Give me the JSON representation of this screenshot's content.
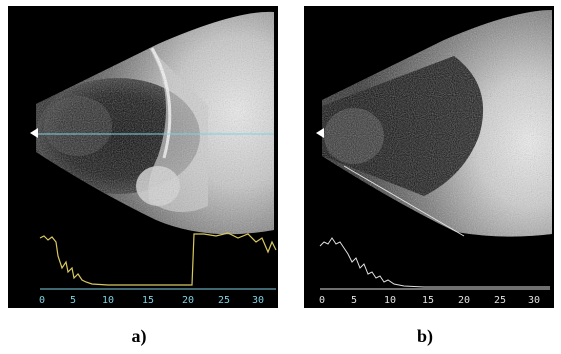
{
  "panels": [
    {
      "id": "a",
      "caption": "a)",
      "trace_color": "#d8c860",
      "axis_color": "#7fd0e0",
      "tick_labels": [
        "0",
        "5",
        "10",
        "15",
        "20",
        "25",
        "30"
      ]
    },
    {
      "id": "b",
      "caption": "b)",
      "trace_color": "#e0e0e0",
      "axis_color": "#e0e0e0",
      "tick_labels": [
        "0",
        "5",
        "10",
        "15",
        "20",
        "25",
        "30"
      ]
    }
  ]
}
